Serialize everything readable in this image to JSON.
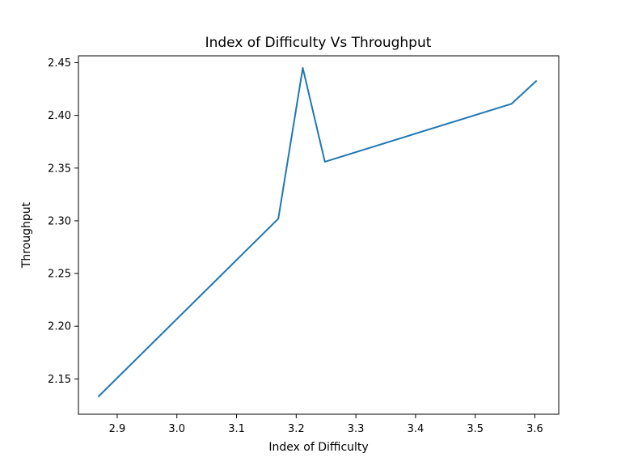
{
  "chart_data": {
    "type": "line",
    "title": "Index of Difficulty Vs Throughput",
    "xlabel": "Index of Difficulty",
    "ylabel": "Throughput",
    "xlim": [
      2.835,
      3.64
    ],
    "ylim": [
      2.1165,
      2.4565
    ],
    "xticks": [
      2.9,
      3.0,
      3.1,
      3.2,
      3.3,
      3.4,
      3.5,
      3.6
    ],
    "xtick_labels": [
      "2.9",
      "3.0",
      "3.1",
      "3.2",
      "3.3",
      "3.4",
      "3.5",
      "3.6"
    ],
    "yticks": [
      2.15,
      2.2,
      2.25,
      2.3,
      2.35,
      2.4,
      2.45
    ],
    "ytick_labels": [
      "2.15",
      "2.20",
      "2.25",
      "2.30",
      "2.35",
      "2.40",
      "2.45"
    ],
    "grid": false,
    "series": [
      {
        "color": "#1f77b4",
        "x": [
          2.868,
          3.17,
          3.211,
          3.248,
          3.561,
          3.603
        ],
        "y": [
          2.133,
          2.302,
          2.445,
          2.356,
          2.411,
          2.433
        ]
      }
    ]
  }
}
